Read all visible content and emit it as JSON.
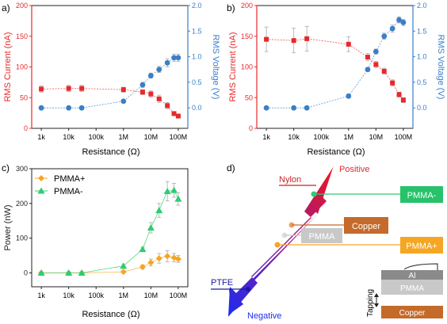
{
  "panels": {
    "a": "a)",
    "b": "b)",
    "c": "c)",
    "d": "d)"
  },
  "colors": {
    "current": "#e8282b",
    "voltage": "#3a7fc8",
    "pmma_plus": "#f5a623",
    "pmma_minus": "#2ecc71",
    "nylon": "#cc2222",
    "ptfe": "#1a1aa0",
    "copper": "#c46a2a",
    "pmma_box": "#c8c8c8",
    "al_box": "#8a8a8a"
  },
  "chart_data": [
    {
      "type": "scatter",
      "panel": "a",
      "x_ticks": [
        "1k",
        "10k",
        "100k",
        "1M",
        "10M",
        "100M"
      ],
      "xlabel": "Resistance (Ω)",
      "ylabel": "RMS Current (nA)",
      "y2label": "RMS Voltage (V)",
      "ylim": [
        0,
        200
      ],
      "y_ticks": [
        "0",
        "50",
        "100",
        "150",
        "200"
      ],
      "y2lim": [
        -0.4,
        2.0
      ],
      "y2_ticks": [
        "0.0",
        "0.5",
        "1.0",
        "1.5",
        "2.0"
      ],
      "series": [
        {
          "axis": "left",
          "color": "#e8282b",
          "marker": "square",
          "x": [
            1000,
            10000,
            30000,
            1000000,
            5000000,
            10000000,
            20000000,
            40000000,
            70000000,
            100000000
          ],
          "y": [
            64,
            65,
            65,
            63,
            59,
            56,
            48,
            37,
            24,
            20
          ],
          "err": [
            5,
            5,
            5,
            4,
            4,
            5,
            6,
            5,
            3,
            3
          ]
        },
        {
          "axis": "right",
          "color": "#3a7fc8",
          "marker": "circle",
          "x": [
            1000,
            10000,
            30000,
            1000000,
            5000000,
            10000000,
            20000000,
            40000000,
            70000000,
            100000000
          ],
          "y": [
            0.0,
            0.0,
            0.0,
            0.13,
            0.45,
            0.63,
            0.75,
            0.88,
            0.98,
            0.98
          ],
          "err": [
            0.02,
            0.02,
            0.02,
            0.03,
            0.05,
            0.05,
            0.06,
            0.08,
            0.07,
            0.07
          ]
        }
      ]
    },
    {
      "type": "scatter",
      "panel": "b",
      "x_ticks": [
        "1k",
        "10k",
        "100k",
        "1M",
        "10M",
        "100M"
      ],
      "xlabel": "Resistance (Ω)",
      "ylabel": "RMS Current (nA)",
      "y2label": "RMS Voltage (V)",
      "ylim": [
        0,
        200
      ],
      "y_ticks": [
        "0",
        "50",
        "100",
        "150",
        "200"
      ],
      "y2lim": [
        -0.4,
        2.0
      ],
      "y2_ticks": [
        "0.0",
        "0.5",
        "1.0",
        "1.5",
        "2.0"
      ],
      "series": [
        {
          "axis": "left",
          "color": "#e8282b",
          "marker": "square",
          "x": [
            1000,
            10000,
            30000,
            1000000,
            5000000,
            10000000,
            20000000,
            40000000,
            70000000,
            100000000
          ],
          "y": [
            145,
            143,
            146,
            137,
            116,
            104,
            93,
            74,
            55,
            46
          ],
          "err": [
            20,
            20,
            20,
            12,
            6,
            5,
            5,
            5,
            4,
            4
          ]
        },
        {
          "axis": "right",
          "color": "#3a7fc8",
          "marker": "circle",
          "x": [
            1000,
            10000,
            30000,
            1000000,
            5000000,
            10000000,
            20000000,
            40000000,
            70000000,
            100000000
          ],
          "y": [
            0.0,
            0.0,
            0.0,
            0.23,
            0.75,
            1.1,
            1.4,
            1.55,
            1.72,
            1.67
          ],
          "err": [
            0.02,
            0.02,
            0.02,
            0.03,
            0.04,
            0.05,
            0.06,
            0.07,
            0.06,
            0.06
          ]
        }
      ]
    },
    {
      "type": "scatter",
      "panel": "c",
      "x_ticks": [
        "1k",
        "10k",
        "100k",
        "1M",
        "10M",
        "100M"
      ],
      "xlabel": "Resistance (Ω)",
      "ylabel": "Power (nW)",
      "ylim": [
        -40,
        300
      ],
      "y_ticks": [
        "0",
        "100",
        "200",
        "300"
      ],
      "legend": "top-left",
      "series": [
        {
          "name": "PMMA+",
          "color": "#f5a623",
          "marker": "diamond",
          "x": [
            1000,
            10000,
            30000,
            1000000,
            5000000,
            10000000,
            20000000,
            40000000,
            70000000,
            100000000
          ],
          "y": [
            0,
            0,
            0,
            3,
            17,
            30,
            42,
            48,
            44,
            40
          ],
          "err": [
            2,
            2,
            2,
            3,
            6,
            10,
            14,
            16,
            12,
            10
          ]
        },
        {
          "name": "PMMA-",
          "color": "#2ecc71",
          "marker": "triangle",
          "x": [
            1000,
            10000,
            30000,
            1000000,
            5000000,
            10000000,
            20000000,
            40000000,
            70000000,
            100000000
          ],
          "y": [
            0,
            0,
            0,
            20,
            68,
            130,
            180,
            235,
            238,
            213
          ],
          "err": [
            2,
            2,
            2,
            4,
            6,
            15,
            20,
            28,
            20,
            18
          ]
        }
      ]
    }
  ],
  "diagram": {
    "positive": "Positive",
    "negative": "Negative",
    "nylon": "Nylon",
    "ptfe": "PTFE",
    "pmma_minus": "PMMA-",
    "copper": "Copper",
    "pmma": "PMMA",
    "pmma_plus": "PMMA+",
    "stack": {
      "al": "Al",
      "pmma": "PMMA",
      "copper": "Copper",
      "tapping": "Tapping"
    }
  }
}
